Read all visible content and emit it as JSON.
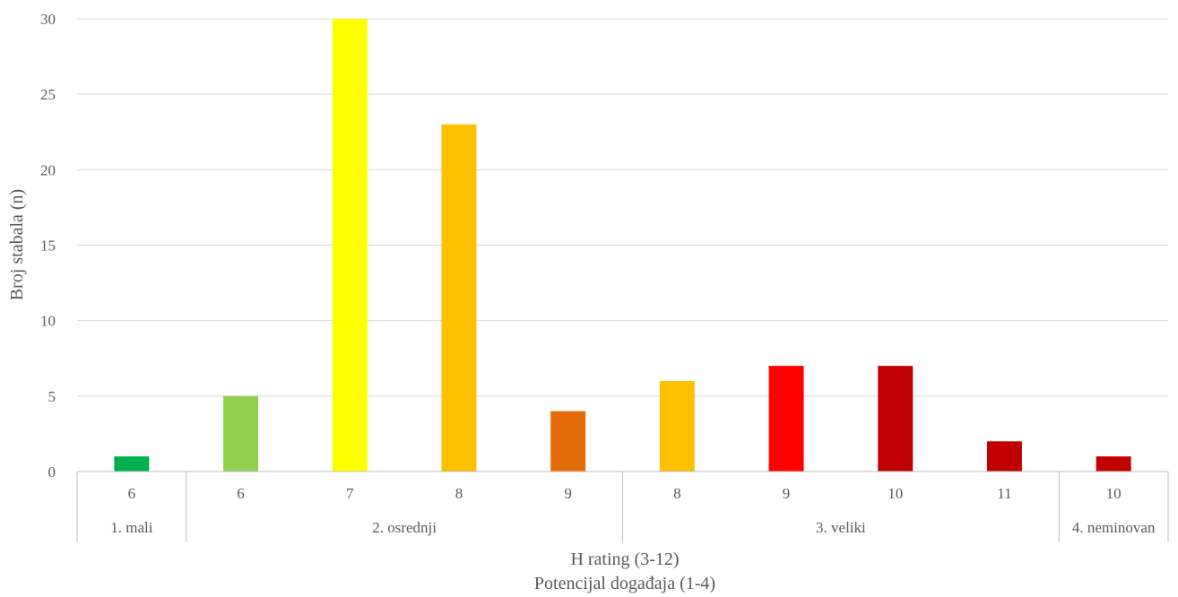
{
  "chart_data": {
    "type": "bar",
    "ylabel": "Broj stabala (n)",
    "xlabel": [
      "H rating (3-12)",
      "Potencijal događaja (1-4)"
    ],
    "ylim": [
      0,
      30
    ],
    "yticks": [
      0,
      5,
      10,
      15,
      20,
      25,
      30
    ],
    "grid": true,
    "groups": [
      {
        "label": "1. mali",
        "categories": [
          "6"
        ],
        "values": [
          1
        ],
        "colors": [
          "#00b050"
        ]
      },
      {
        "label": "2. osrednji",
        "categories": [
          "6",
          "7",
          "8",
          "9"
        ],
        "values": [
          5,
          30,
          23,
          4
        ],
        "colors": [
          "#92d050",
          "#ffff00",
          "#ffc000",
          "#e36c09"
        ]
      },
      {
        "label": "3. veliki",
        "categories": [
          "8",
          "9",
          "10",
          "11"
        ],
        "values": [
          6,
          7,
          7,
          2
        ],
        "colors": [
          "#ffc000",
          "#ff0000",
          "#c00000",
          "#c00000"
        ]
      },
      {
        "label": "4. neminovan",
        "categories": [
          "10"
        ],
        "values": [
          1
        ],
        "colors": [
          "#c00000"
        ]
      }
    ]
  }
}
